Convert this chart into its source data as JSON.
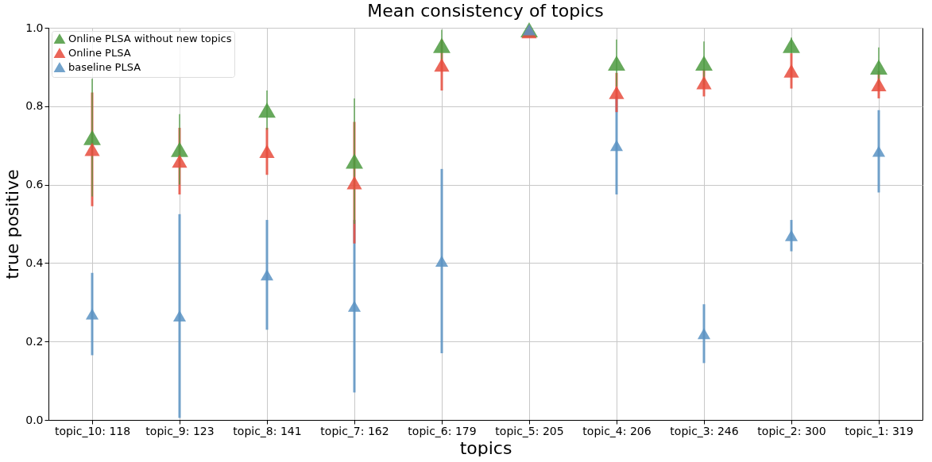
{
  "chart_data": {
    "type": "scatter",
    "title": "Mean consistency of topics",
    "xlabel": "topics",
    "ylabel": "true positive",
    "categories": [
      "topic_10: 118",
      "topic_9: 123",
      "topic_8: 141",
      "topic_7: 162",
      "topic_6: 179",
      "topic_5: 205",
      "topic_4: 206",
      "topic_3: 246",
      "topic_2: 300",
      "topic_1: 319"
    ],
    "series": [
      {
        "name": "Online PLSA without new topics",
        "color": "#4c9a3f",
        "values": [
          0.72,
          0.69,
          0.79,
          0.66,
          0.955,
          0.995,
          0.91,
          0.91,
          0.955,
          0.9
        ],
        "errors": [
          0.15,
          0.09,
          0.05,
          0.16,
          0.04,
          null,
          0.06,
          0.055,
          0.02,
          0.05
        ]
      },
      {
        "name": "Online PLSA",
        "color": "#e84c3d",
        "values": [
          0.69,
          0.66,
          0.685,
          0.605,
          0.905,
          0.99,
          0.835,
          0.86,
          0.89,
          0.855
        ],
        "errors": [
          0.145,
          0.085,
          0.06,
          0.155,
          0.065,
          null,
          0.05,
          0.035,
          0.045,
          0.035
        ]
      },
      {
        "name": "baseline PLSA",
        "color": "#5b93c3",
        "values": [
          0.27,
          0.265,
          0.37,
          0.29,
          0.405,
          0.995,
          0.7,
          0.22,
          0.47,
          0.685
        ],
        "errors": [
          0.105,
          0.26,
          0.14,
          0.22,
          0.235,
          null,
          0.125,
          0.075,
          0.04,
          0.105
        ]
      }
    ],
    "ylim": [
      0,
      1
    ],
    "yticks": [
      {
        "value": 0,
        "label": "0.0"
      },
      0.2,
      0.4,
      0.6,
      0.8,
      {
        "value": 1,
        "label": "1.0"
      }
    ],
    "grid": true,
    "legend": "top left",
    "marker": "triangle"
  }
}
